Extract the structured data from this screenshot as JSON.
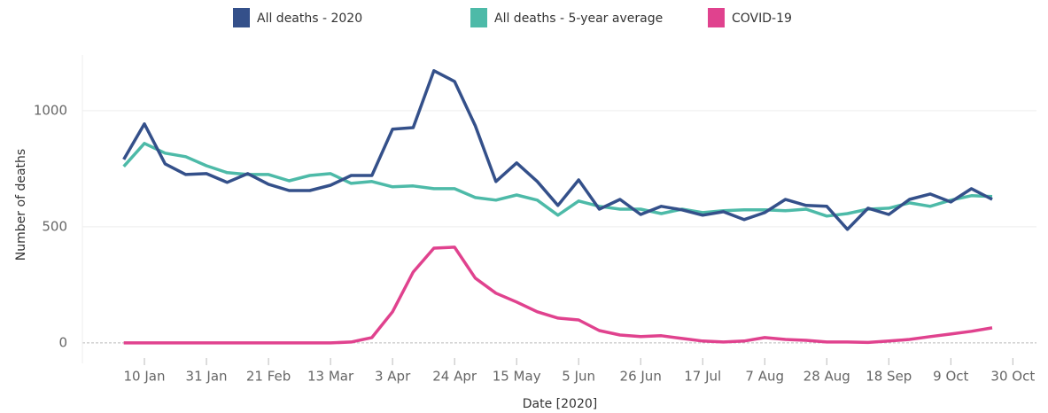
{
  "chart_data": {
    "type": "line",
    "x_label": "Date [2020]",
    "y_label": "Number of deaths",
    "x": [
      3,
      10,
      17,
      24,
      31,
      38,
      45,
      52,
      59,
      66,
      73,
      80,
      87,
      94,
      101,
      108,
      115,
      122,
      129,
      136,
      143,
      150,
      157,
      164,
      171,
      178,
      185,
      192,
      199,
      206,
      213,
      220,
      227,
      234,
      241,
      248,
      255,
      262,
      269,
      276,
      283,
      290,
      297
    ],
    "series": [
      {
        "name": "All deaths - 2020",
        "color": "#34508a",
        "values": [
          790,
          943,
          771,
          725,
          729,
          691,
          729,
          683,
          656,
          656,
          679,
          721,
          721,
          920,
          927,
          1172,
          1126,
          935,
          695,
          775,
          695,
          592,
          702,
          576,
          618,
          553,
          588,
          573,
          550,
          565,
          531,
          561,
          618,
          592,
          588,
          489,
          580,
          553,
          618,
          641,
          607,
          664,
          618
        ]
      },
      {
        "name": "All deaths - 5-year average",
        "color": "#4dbaa8",
        "values": [
          760,
          859,
          817,
          802,
          763,
          733,
          725,
          725,
          698,
          721,
          729,
          687,
          695,
          672,
          676,
          664,
          664,
          626,
          615,
          637,
          615,
          550,
          611,
          588,
          576,
          576,
          557,
          576,
          561,
          569,
          573,
          573,
          569,
          576,
          546,
          557,
          576,
          580,
          603,
          588,
          615,
          634,
          630
        ]
      },
      {
        "name": "COVID-19",
        "color": "#e0428e",
        "values": [
          0,
          0,
          0,
          0,
          0,
          0,
          0,
          0,
          0,
          0,
          0,
          4,
          23,
          134,
          305,
          408,
          412,
          279,
          214,
          176,
          134,
          107,
          99,
          53,
          34,
          27,
          31,
          19,
          8,
          4,
          8,
          23,
          15,
          11,
          4,
          4,
          2,
          8,
          15,
          27,
          38,
          50,
          65
        ]
      }
    ],
    "xlim": [
      -11,
      312
    ],
    "xticks": [
      {
        "value": 10,
        "label": "10 Jan"
      },
      {
        "value": 31,
        "label": "31 Jan"
      },
      {
        "value": 52,
        "label": "21 Feb"
      },
      {
        "value": 73,
        "label": "13 Mar"
      },
      {
        "value": 94,
        "label": "3 Apr"
      },
      {
        "value": 115,
        "label": "24 Apr"
      },
      {
        "value": 136,
        "label": "15 May"
      },
      {
        "value": 157,
        "label": "5 Jun"
      },
      {
        "value": 178,
        "label": "26 Jun"
      },
      {
        "value": 199,
        "label": "17 Jul"
      },
      {
        "value": 220,
        "label": "7 Aug"
      },
      {
        "value": 241,
        "label": "28 Aug"
      },
      {
        "value": 262,
        "label": "18 Sep"
      },
      {
        "value": 283,
        "label": "9 Oct"
      },
      {
        "value": 304,
        "label": "30 Oct"
      }
    ],
    "ylim": [
      -50,
      1240
    ],
    "yticks": [
      0,
      500,
      1000
    ],
    "grid": true,
    "legend": "top"
  }
}
